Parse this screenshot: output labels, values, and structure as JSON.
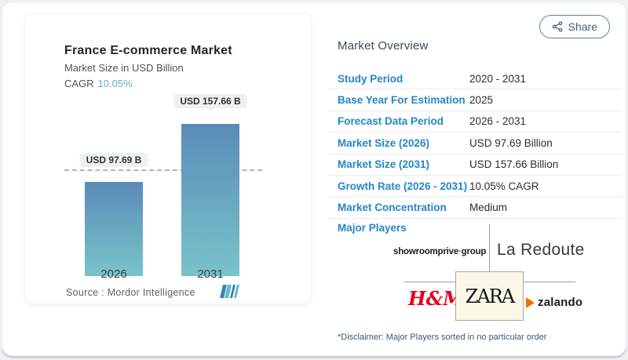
{
  "share": {
    "label": "Share"
  },
  "chart_data": {
    "type": "bar",
    "title": "France E-commerce Market",
    "subtitle": "Market Size in USD Billion",
    "cagr_label": "CAGR",
    "cagr_value": "10.05%",
    "categories": [
      "2026",
      "2031"
    ],
    "values": [
      97.69,
      157.66
    ],
    "bar_labels": [
      "USD 97.69 B",
      "USD 157.66 B"
    ],
    "ylim": [
      0,
      170
    ],
    "reference_line": 97.69,
    "grid": "off",
    "bar_gradient": [
      "#5a8bb7",
      "#79c4ca"
    ],
    "source_label": "Source :  Mordor Intelligence"
  },
  "overview": {
    "heading": "Market Overview",
    "rows": [
      {
        "label": "Study Period",
        "value": "2020 - 2031"
      },
      {
        "label": "Base Year For Estimation",
        "value": "2025"
      },
      {
        "label": "Forecast Data Period",
        "value": "2026 - 2031"
      },
      {
        "label": "Market Size (2026)",
        "value": "USD 97.69 Billion"
      },
      {
        "label": "Market Size (2031)",
        "value": "USD 157.66 Billion"
      },
      {
        "label": "Growth Rate (2026 - 2031)",
        "value": "10.05% CAGR"
      },
      {
        "label": "Market Concentration",
        "value": "Medium"
      }
    ]
  },
  "major_players": {
    "label": "Major Players",
    "srp_name": "showroomprive",
    "srp_dot": "·",
    "srp_group": "group",
    "la_redoute": "La Redoute",
    "hm": "H&M",
    "zara": "ZARA",
    "zalando": "zalando",
    "disclaimer": "*Disclaimer: Major Players sorted in no particular order"
  },
  "colors": {
    "label_blue": "#2487c5",
    "bar_top": "#5a8bb7",
    "bar_bottom": "#79c4ca",
    "cagr_value": "#74a6c6",
    "hm_red": "#e2001a",
    "zalando_orange": "#ff6900"
  }
}
